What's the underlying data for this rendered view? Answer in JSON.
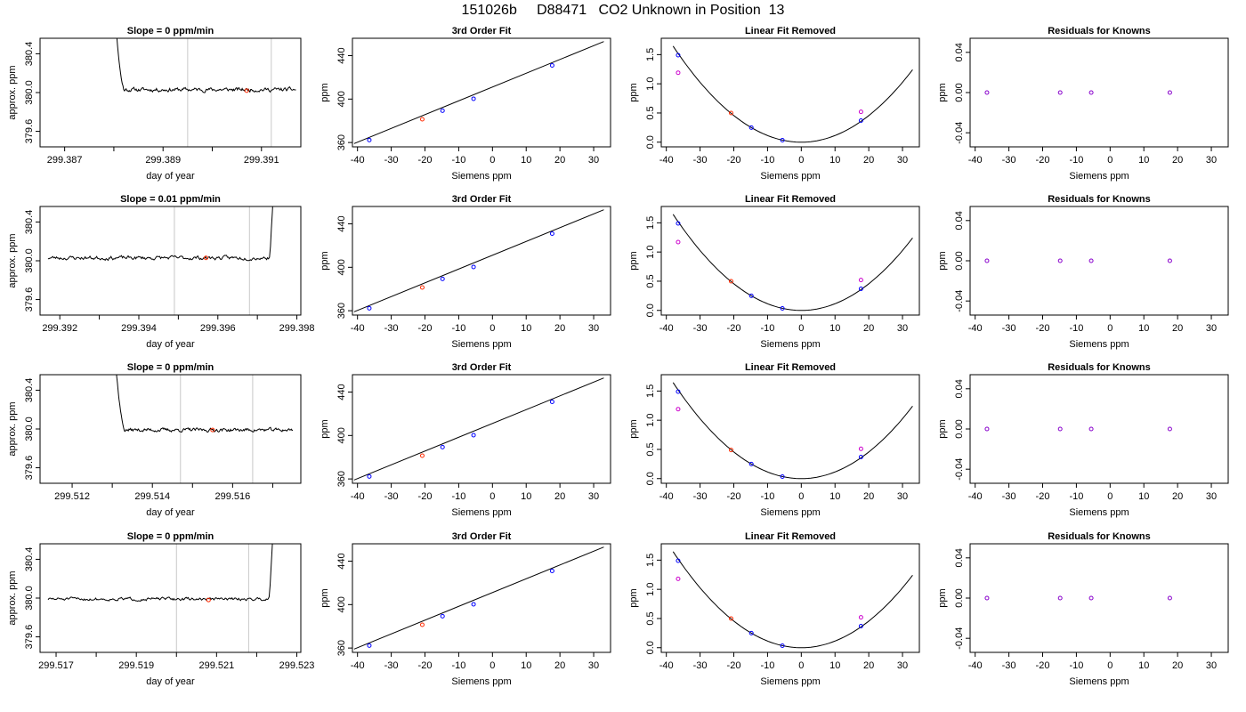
{
  "title": "151026b     D88471   CO2 Unknown in Position  13",
  "colors": {
    "known": "#0000ff",
    "unknown": "#ff2a00",
    "target": "#cc00cc",
    "both": "#8800cc",
    "line": "#000000",
    "vline": "#c8c8c8"
  },
  "chart_data": [
    {
      "type": "line",
      "title": "Slope =  0  ppm/min",
      "xlabel": "day of year",
      "ylabel": "approx. ppm",
      "xlim": [
        299.3865,
        299.3918
      ],
      "ylim": [
        379.44,
        380.56
      ],
      "xticks": [
        "299.387",
        "299.389",
        "299.391"
      ],
      "xtick_values": [
        299.387,
        299.389,
        299.391
      ],
      "yticks": [
        "379.6",
        "380.0",
        "380.4"
      ],
      "ytick_values": [
        379.6,
        380.0,
        380.4
      ],
      "vlines": [
        299.3895,
        299.3912
      ],
      "trace": {
        "start": 299.3879,
        "end": 299.3917,
        "level": 380.03,
        "noise": 0.02,
        "rise": "left",
        "rise_end": 299.3882,
        "seed": 11
      },
      "marker": {
        "x": 299.3907,
        "y": 380.02
      }
    },
    {
      "type": "line",
      "title": "3rd Order Fit",
      "xlabel": "Siemens ppm",
      "ylabel": "ppm",
      "xlim": [
        -41.5,
        35
      ],
      "ylim": [
        356,
        456
      ],
      "xticks": [
        "-40",
        "-30",
        "-20",
        "-10",
        "0",
        "10",
        "20",
        "30"
      ],
      "xtick_values": [
        -40,
        -30,
        -20,
        -10,
        0,
        10,
        20,
        30
      ],
      "yticks": [
        "360",
        "400",
        "440"
      ],
      "ytick_values": [
        360,
        400,
        440
      ],
      "fit_line": {
        "x": [
          -41,
          33
        ],
        "y": [
          359.0,
          453.0
        ]
      },
      "points": [
        {
          "x": -36.5,
          "y": 362.3,
          "kind": "known"
        },
        {
          "x": -20.8,
          "y": 381.4,
          "kind": "unknown"
        },
        {
          "x": -14.8,
          "y": 389.3,
          "kind": "known"
        },
        {
          "x": -5.6,
          "y": 400.3,
          "kind": "known"
        },
        {
          "x": 17.7,
          "y": 431.0,
          "kind": "known"
        }
      ]
    },
    {
      "type": "line",
      "title": "Linear Fit Removed",
      "xlabel": "Siemens ppm",
      "ylabel": "ppm",
      "xlim": [
        -41.5,
        35
      ],
      "ylim": [
        -0.08,
        1.78
      ],
      "xticks": [
        "-40",
        "-30",
        "-20",
        "-10",
        "0",
        "10",
        "20",
        "30"
      ],
      "xtick_values": [
        -40,
        -30,
        -20,
        -10,
        0,
        10,
        20,
        30
      ],
      "yticks": [
        "0.0",
        "0.5",
        "1.0",
        "1.5"
      ],
      "ytick_values": [
        0.0,
        0.5,
        1.0,
        1.5
      ],
      "curve": {
        "a": 0.00114,
        "x0": 0,
        "from": -38,
        "to": 33
      },
      "points": [
        {
          "x": -36.5,
          "y": 1.49,
          "kind": "known"
        },
        {
          "x": -36.5,
          "y": 1.19,
          "kind": "target"
        },
        {
          "x": -20.8,
          "y": 0.5,
          "kind": "unknown"
        },
        {
          "x": -14.8,
          "y": 0.25,
          "kind": "known"
        },
        {
          "x": -5.6,
          "y": 0.035,
          "kind": "known"
        },
        {
          "x": 17.7,
          "y": 0.37,
          "kind": "known"
        },
        {
          "x": 17.7,
          "y": 0.52,
          "kind": "target"
        }
      ]
    },
    {
      "type": "scatter",
      "title": "Residuals for Knowns",
      "xlabel": "Siemens ppm",
      "ylabel": "ppm",
      "xlim": [
        -41.5,
        35
      ],
      "ylim": [
        -0.054,
        0.054
      ],
      "xticks": [
        "-40",
        "-30",
        "-20",
        "-10",
        "0",
        "10",
        "20",
        "30"
      ],
      "xtick_values": [
        -40,
        -30,
        -20,
        -10,
        0,
        10,
        20,
        30
      ],
      "yticks": [
        "-0.04",
        "0.00",
        "0.04"
      ],
      "ytick_values": [
        -0.04,
        0.0,
        0.04
      ],
      "points": [
        {
          "x": -36.5,
          "y": 0.0,
          "kind": "both"
        },
        {
          "x": -14.8,
          "y": 0.0,
          "kind": "both"
        },
        {
          "x": -5.6,
          "y": 0.0,
          "kind": "both"
        },
        {
          "x": 17.7,
          "y": 0.0,
          "kind": "both"
        }
      ]
    },
    {
      "type": "line",
      "title": "Slope =  0.01  ppm/min",
      "xlabel": "day of year",
      "ylabel": "approx. ppm",
      "xlim": [
        299.3915,
        299.3981
      ],
      "ylim": [
        379.44,
        380.56
      ],
      "xticks": [
        "299.392",
        "299.394",
        "299.396",
        "299.398"
      ],
      "xtick_values": [
        299.392,
        299.394,
        299.396,
        299.398
      ],
      "yticks": [
        "379.6",
        "380.0",
        "380.4"
      ],
      "ytick_values": [
        379.6,
        380.0,
        380.4
      ],
      "vlines": [
        299.3949,
        299.3968
      ],
      "trace": {
        "start": 299.3917,
        "end": 299.3975,
        "level": 380.03,
        "noise": 0.02,
        "rise": "right",
        "rise_start": 299.3973,
        "seed": 23
      },
      "marker": {
        "x": 299.3957,
        "y": 380.03
      }
    },
    {
      "type": "line",
      "title": "3rd Order Fit",
      "xlabel": "Siemens ppm",
      "ylabel": "ppm",
      "xlim": [
        -41.5,
        35
      ],
      "ylim": [
        356,
        456
      ],
      "xticks": [
        "-40",
        "-30",
        "-20",
        "-10",
        "0",
        "10",
        "20",
        "30"
      ],
      "xtick_values": [
        -40,
        -30,
        -20,
        -10,
        0,
        10,
        20,
        30
      ],
      "yticks": [
        "360",
        "400",
        "440"
      ],
      "ytick_values": [
        360,
        400,
        440
      ],
      "fit_line": {
        "x": [
          -41,
          33
        ],
        "y": [
          359.0,
          453.0
        ]
      },
      "points": [
        {
          "x": -36.5,
          "y": 362.3,
          "kind": "known"
        },
        {
          "x": -20.8,
          "y": 381.4,
          "kind": "unknown"
        },
        {
          "x": -14.8,
          "y": 389.3,
          "kind": "known"
        },
        {
          "x": -5.6,
          "y": 400.3,
          "kind": "known"
        },
        {
          "x": 17.7,
          "y": 431.0,
          "kind": "known"
        }
      ]
    },
    {
      "type": "line",
      "title": "Linear Fit Removed",
      "xlabel": "Siemens ppm",
      "ylabel": "ppm",
      "xlim": [
        -41.5,
        35
      ],
      "ylim": [
        -0.08,
        1.78
      ],
      "xticks": [
        "-40",
        "-30",
        "-20",
        "-10",
        "0",
        "10",
        "20",
        "30"
      ],
      "xtick_values": [
        -40,
        -30,
        -20,
        -10,
        0,
        10,
        20,
        30
      ],
      "yticks": [
        "0.0",
        "0.5",
        "1.0",
        "1.5"
      ],
      "ytick_values": [
        0.0,
        0.5,
        1.0,
        1.5
      ],
      "curve": {
        "a": 0.00114,
        "x0": 0,
        "from": -38,
        "to": 33
      },
      "points": [
        {
          "x": -36.5,
          "y": 1.49,
          "kind": "known"
        },
        {
          "x": -36.5,
          "y": 1.17,
          "kind": "target"
        },
        {
          "x": -20.8,
          "y": 0.5,
          "kind": "unknown"
        },
        {
          "x": -14.8,
          "y": 0.25,
          "kind": "known"
        },
        {
          "x": -5.6,
          "y": 0.035,
          "kind": "known"
        },
        {
          "x": 17.7,
          "y": 0.37,
          "kind": "known"
        },
        {
          "x": 17.7,
          "y": 0.52,
          "kind": "target"
        }
      ]
    },
    {
      "type": "scatter",
      "title": "Residuals for Knowns",
      "xlabel": "Siemens ppm",
      "ylabel": "ppm",
      "xlim": [
        -41.5,
        35
      ],
      "ylim": [
        -0.054,
        0.054
      ],
      "xticks": [
        "-40",
        "-30",
        "-20",
        "-10",
        "0",
        "10",
        "20",
        "30"
      ],
      "xtick_values": [
        -40,
        -30,
        -20,
        -10,
        0,
        10,
        20,
        30
      ],
      "yticks": [
        "-0.04",
        "0.00",
        "0.04"
      ],
      "ytick_values": [
        -0.04,
        0.0,
        0.04
      ],
      "points": [
        {
          "x": -36.5,
          "y": 0.0,
          "kind": "both"
        },
        {
          "x": -14.8,
          "y": 0.0,
          "kind": "both"
        },
        {
          "x": -5.6,
          "y": 0.0,
          "kind": "both"
        },
        {
          "x": 17.7,
          "y": 0.0,
          "kind": "both"
        }
      ]
    },
    {
      "type": "line",
      "title": "Slope =  0  ppm/min",
      "xlabel": "day of year",
      "ylabel": "approx. ppm",
      "xlim": [
        299.5112,
        299.5177
      ],
      "ylim": [
        379.44,
        380.56
      ],
      "xticks": [
        "299.512",
        "299.514",
        "299.516"
      ],
      "xtick_values": [
        299.512,
        299.514,
        299.516
      ],
      "yticks": [
        "379.6",
        "380.0",
        "380.4"
      ],
      "ytick_values": [
        379.6,
        380.0,
        380.4
      ],
      "vlines": [
        299.5147,
        299.5165
      ],
      "trace": {
        "start": 299.5129,
        "end": 299.5175,
        "level": 379.99,
        "noise": 0.018,
        "rise": "left",
        "rise_end": 299.5133,
        "seed": 37
      },
      "marker": {
        "x": 299.5155,
        "y": 379.99
      }
    },
    {
      "type": "line",
      "title": "3rd Order Fit",
      "xlabel": "Siemens ppm",
      "ylabel": "ppm",
      "xlim": [
        -41.5,
        35
      ],
      "ylim": [
        356,
        456
      ],
      "xticks": [
        "-40",
        "-30",
        "-20",
        "-10",
        "0",
        "10",
        "20",
        "30"
      ],
      "xtick_values": [
        -40,
        -30,
        -20,
        -10,
        0,
        10,
        20,
        30
      ],
      "yticks": [
        "360",
        "400",
        "440"
      ],
      "ytick_values": [
        360,
        400,
        440
      ],
      "fit_line": {
        "x": [
          -41,
          33
        ],
        "y": [
          359.0,
          453.0
        ]
      },
      "points": [
        {
          "x": -36.5,
          "y": 362.3,
          "kind": "known"
        },
        {
          "x": -20.8,
          "y": 381.4,
          "kind": "unknown"
        },
        {
          "x": -14.8,
          "y": 389.3,
          "kind": "known"
        },
        {
          "x": -5.6,
          "y": 400.3,
          "kind": "known"
        },
        {
          "x": 17.7,
          "y": 431.0,
          "kind": "known"
        }
      ]
    },
    {
      "type": "line",
      "title": "Linear Fit Removed",
      "xlabel": "Siemens ppm",
      "ylabel": "ppm",
      "xlim": [
        -41.5,
        35
      ],
      "ylim": [
        -0.08,
        1.78
      ],
      "xticks": [
        "-40",
        "-30",
        "-20",
        "-10",
        "0",
        "10",
        "20",
        "30"
      ],
      "xtick_values": [
        -40,
        -30,
        -20,
        -10,
        0,
        10,
        20,
        30
      ],
      "yticks": [
        "0.0",
        "0.5",
        "1.0",
        "1.5"
      ],
      "ytick_values": [
        0.0,
        0.5,
        1.0,
        1.5
      ],
      "curve": {
        "a": 0.00114,
        "x0": 0,
        "from": -38,
        "to": 33
      },
      "points": [
        {
          "x": -36.5,
          "y": 1.49,
          "kind": "known"
        },
        {
          "x": -36.5,
          "y": 1.19,
          "kind": "target"
        },
        {
          "x": -20.8,
          "y": 0.49,
          "kind": "unknown"
        },
        {
          "x": -14.8,
          "y": 0.25,
          "kind": "known"
        },
        {
          "x": -5.6,
          "y": 0.035,
          "kind": "known"
        },
        {
          "x": 17.7,
          "y": 0.37,
          "kind": "known"
        },
        {
          "x": 17.7,
          "y": 0.51,
          "kind": "target"
        }
      ]
    },
    {
      "type": "scatter",
      "title": "Residuals for Knowns",
      "xlabel": "Siemens ppm",
      "ylabel": "ppm",
      "xlim": [
        -41.5,
        35
      ],
      "ylim": [
        -0.054,
        0.054
      ],
      "xticks": [
        "-40",
        "-30",
        "-20",
        "-10",
        "0",
        "10",
        "20",
        "30"
      ],
      "xtick_values": [
        -40,
        -30,
        -20,
        -10,
        0,
        10,
        20,
        30
      ],
      "yticks": [
        "-0.04",
        "0.00",
        "0.04"
      ],
      "ytick_values": [
        -0.04,
        0.0,
        0.04
      ],
      "points": [
        {
          "x": -36.5,
          "y": 0.0,
          "kind": "both"
        },
        {
          "x": -14.8,
          "y": 0.0,
          "kind": "both"
        },
        {
          "x": -5.6,
          "y": 0.0,
          "kind": "both"
        },
        {
          "x": 17.7,
          "y": 0.0,
          "kind": "both"
        }
      ]
    },
    {
      "type": "line",
      "title": "Slope =  0  ppm/min",
      "xlabel": "day of year",
      "ylabel": "approx. ppm",
      "xlim": [
        299.5166,
        299.5231
      ],
      "ylim": [
        379.44,
        380.56
      ],
      "xticks": [
        "299.517",
        "299.519",
        "299.521",
        "299.523"
      ],
      "xtick_values": [
        299.517,
        299.519,
        299.521,
        299.523
      ],
      "yticks": [
        "379.6",
        "380.0",
        "380.4"
      ],
      "ytick_values": [
        379.6,
        380.0,
        380.4
      ],
      "vlines": [
        299.52,
        299.5218
      ],
      "trace": {
        "start": 299.5168,
        "end": 299.5225,
        "level": 379.99,
        "noise": 0.016,
        "rise": "right",
        "rise_start": 299.5223,
        "seed": 51
      },
      "marker": {
        "x": 299.5208,
        "y": 379.98
      }
    },
    {
      "type": "line",
      "title": "3rd Order Fit",
      "xlabel": "Siemens ppm",
      "ylabel": "ppm",
      "xlim": [
        -41.5,
        35
      ],
      "ylim": [
        356,
        456
      ],
      "xticks": [
        "-40",
        "-30",
        "-20",
        "-10",
        "0",
        "10",
        "20",
        "30"
      ],
      "xtick_values": [
        -40,
        -30,
        -20,
        -10,
        0,
        10,
        20,
        30
      ],
      "yticks": [
        "360",
        "400",
        "440"
      ],
      "ytick_values": [
        360,
        400,
        440
      ],
      "fit_line": {
        "x": [
          -41,
          33
        ],
        "y": [
          359.0,
          453.0
        ]
      },
      "points": [
        {
          "x": -36.5,
          "y": 362.3,
          "kind": "known"
        },
        {
          "x": -20.8,
          "y": 381.4,
          "kind": "unknown"
        },
        {
          "x": -14.8,
          "y": 389.3,
          "kind": "known"
        },
        {
          "x": -5.6,
          "y": 400.3,
          "kind": "known"
        },
        {
          "x": 17.7,
          "y": 431.0,
          "kind": "known"
        }
      ]
    },
    {
      "type": "line",
      "title": "Linear Fit Removed",
      "xlabel": "Siemens ppm",
      "ylabel": "ppm",
      "xlim": [
        -41.5,
        35
      ],
      "ylim": [
        -0.08,
        1.78
      ],
      "xticks": [
        "-40",
        "-30",
        "-20",
        "-10",
        "0",
        "10",
        "20",
        "30"
      ],
      "xtick_values": [
        -40,
        -30,
        -20,
        -10,
        0,
        10,
        20,
        30
      ],
      "yticks": [
        "0.0",
        "0.5",
        "1.0",
        "1.5"
      ],
      "ytick_values": [
        0.0,
        0.5,
        1.0,
        1.5
      ],
      "curve": {
        "a": 0.00114,
        "x0": 0,
        "from": -38,
        "to": 33
      },
      "points": [
        {
          "x": -36.5,
          "y": 1.49,
          "kind": "known"
        },
        {
          "x": -36.5,
          "y": 1.18,
          "kind": "target"
        },
        {
          "x": -20.8,
          "y": 0.5,
          "kind": "unknown"
        },
        {
          "x": -14.8,
          "y": 0.25,
          "kind": "known"
        },
        {
          "x": -5.6,
          "y": 0.035,
          "kind": "known"
        },
        {
          "x": 17.7,
          "y": 0.37,
          "kind": "known"
        },
        {
          "x": 17.7,
          "y": 0.52,
          "kind": "target"
        }
      ]
    },
    {
      "type": "scatter",
      "title": "Residuals for Knowns",
      "xlabel": "Siemens ppm",
      "ylabel": "ppm",
      "xlim": [
        -41.5,
        35
      ],
      "ylim": [
        -0.054,
        0.054
      ],
      "xticks": [
        "-40",
        "-30",
        "-20",
        "-10",
        "0",
        "10",
        "20",
        "30"
      ],
      "xtick_values": [
        -40,
        -30,
        -20,
        -10,
        0,
        10,
        20,
        30
      ],
      "yticks": [
        "-0.04",
        "0.00",
        "0.04"
      ],
      "ytick_values": [
        -0.04,
        0.0,
        0.04
      ],
      "points": [
        {
          "x": -36.5,
          "y": 0.0,
          "kind": "both"
        },
        {
          "x": -14.8,
          "y": 0.0,
          "kind": "both"
        },
        {
          "x": -5.6,
          "y": 0.0,
          "kind": "both"
        },
        {
          "x": 17.7,
          "y": 0.0,
          "kind": "both"
        }
      ]
    }
  ]
}
